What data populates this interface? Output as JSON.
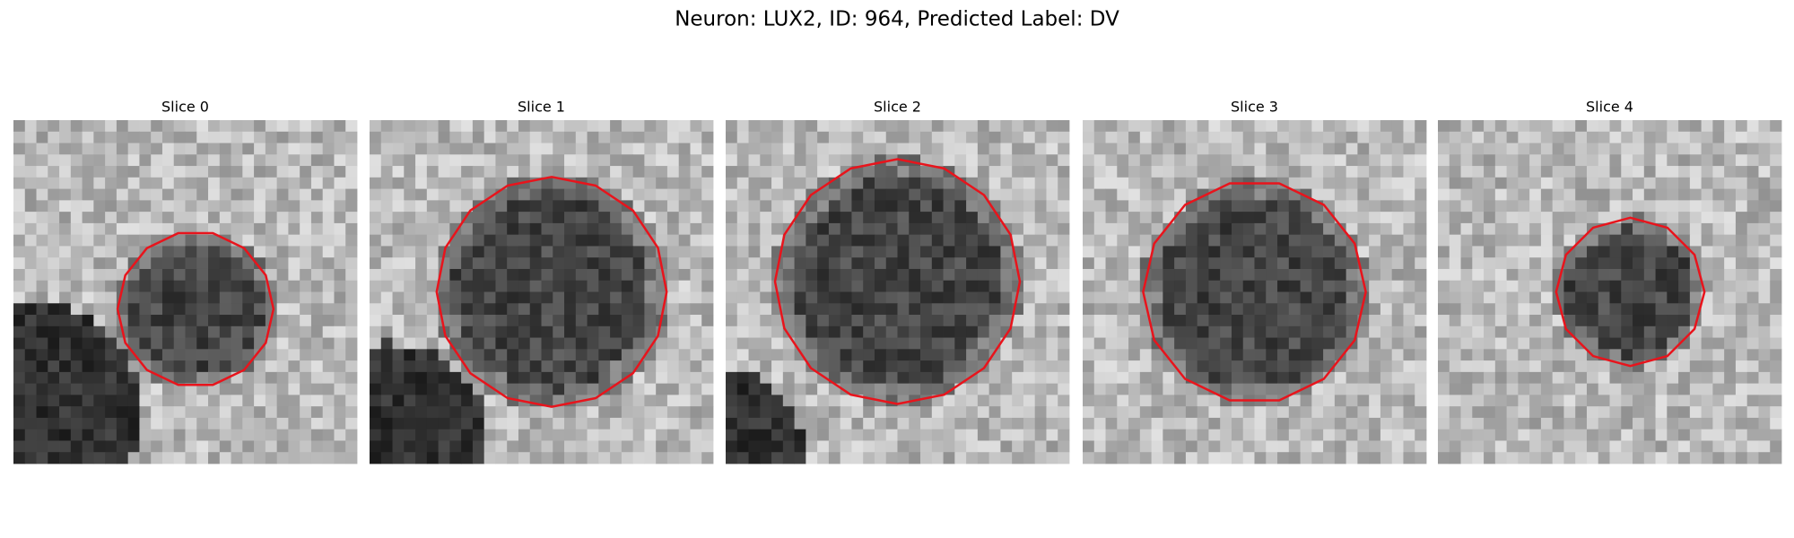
{
  "title": "Neuron: LUX2, ID: 964, Predicted Label: DV",
  "panels": [
    {
      "title": "Slice 0"
    },
    {
      "title": "Slice 1"
    },
    {
      "title": "Slice 2"
    },
    {
      "title": "Slice 3"
    },
    {
      "title": "Slice 4"
    }
  ]
}
